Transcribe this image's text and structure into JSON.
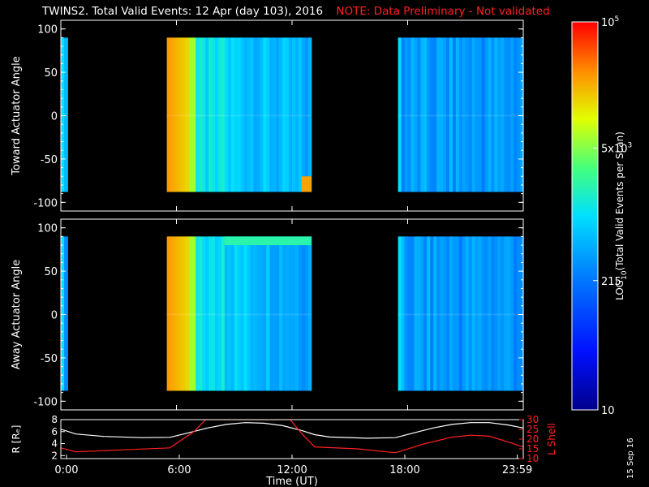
{
  "title": "TWINS2. Total Valid Events: 12 Apr (day 103), 2016",
  "note": "NOTE: Data Preliminary - Not validated",
  "date_stamp": "15 Sep 16",
  "colors": {
    "background": "#000000",
    "foreground": "#ffffff",
    "note": "#ff2020",
    "lshell_line": "#ff2020",
    "radius_line": "#ffffff"
  },
  "chart_data": [
    {
      "name": "toward-panel",
      "type": "heatmap",
      "ylabel": "Toward Actuator Angle",
      "ylim": [
        -110,
        110
      ],
      "yticks": [
        100,
        50,
        0,
        -50,
        -100
      ],
      "xlim": [
        0,
        24
      ],
      "data_range_deg": [
        -88,
        90
      ],
      "segments": [
        {
          "start_h": 0.0,
          "end_h": 0.35,
          "level": "low"
        },
        {
          "start_h": 5.5,
          "end_h": 13.0,
          "level": "high-decaying"
        },
        {
          "start_h": 17.5,
          "end_h": 24.0,
          "level": "low"
        }
      ]
    },
    {
      "name": "away-panel",
      "type": "heatmap",
      "ylabel": "Away Actuator Angle",
      "ylim": [
        -110,
        110
      ],
      "yticks": [
        100,
        50,
        0,
        -50,
        -100
      ],
      "xlim": [
        0,
        24
      ],
      "data_range_deg": [
        -88,
        90
      ],
      "segments": [
        {
          "start_h": 0.0,
          "end_h": 0.35,
          "level": "low"
        },
        {
          "start_h": 5.5,
          "end_h": 13.0,
          "level": "high-decaying"
        },
        {
          "start_h": 17.5,
          "end_h": 24.0,
          "level": "low"
        }
      ]
    },
    {
      "name": "orbit-panel",
      "type": "line",
      "xlabel": "Time (UT)",
      "x_ticks": [
        0,
        6,
        12,
        18,
        23.98
      ],
      "x_tick_labels": [
        "0:00",
        "6:00",
        "12:00",
        "18:00",
        "23:59"
      ],
      "xlim": [
        -0.3,
        24.3
      ],
      "left_axis": {
        "label": "R [Rₑ]",
        "ylim": [
          1.5,
          8
        ],
        "ticks": [
          2,
          4,
          6,
          8
        ]
      },
      "right_axis": {
        "label": "L Shell",
        "ylim": [
          10,
          30
        ],
        "ticks": [
          10,
          15,
          20,
          25,
          30
        ]
      },
      "series": [
        {
          "name": "R",
          "axis": "left",
          "points": [
            [
              -0.3,
              6.4
            ],
            [
              0.5,
              5.6
            ],
            [
              2.0,
              5.2
            ],
            [
              4.0,
              5.0
            ],
            [
              5.5,
              5.05
            ],
            [
              6.5,
              5.8
            ],
            [
              7.5,
              6.6
            ],
            [
              8.5,
              7.2
            ],
            [
              9.5,
              7.5
            ],
            [
              10.5,
              7.4
            ],
            [
              11.5,
              7.0
            ],
            [
              12.5,
              6.2
            ],
            [
              13.2,
              5.5
            ],
            [
              14.0,
              5.1
            ],
            [
              16.0,
              4.9
            ],
            [
              17.5,
              5.0
            ],
            [
              18.5,
              5.8
            ],
            [
              19.5,
              6.6
            ],
            [
              20.5,
              7.2
            ],
            [
              21.5,
              7.5
            ],
            [
              22.5,
              7.5
            ],
            [
              23.5,
              7.1
            ],
            [
              24.3,
              6.6
            ]
          ]
        },
        {
          "name": "L Shell",
          "axis": "right",
          "points": [
            [
              -0.3,
              15.5
            ],
            [
              0.5,
              13.5
            ],
            [
              3.0,
              14.5
            ],
            [
              5.5,
              15.5
            ],
            [
              6.8,
              24.0
            ],
            [
              7.4,
              30.0
            ],
            [
              11.9,
              30.0
            ],
            [
              12.5,
              23.0
            ],
            [
              13.2,
              16.0
            ],
            [
              15.5,
              15.0
            ],
            [
              17.5,
              13.0
            ],
            [
              19.0,
              17.5
            ],
            [
              20.5,
              21.0
            ],
            [
              21.5,
              22.0
            ],
            [
              22.5,
              21.5
            ],
            [
              23.5,
              18.5
            ],
            [
              24.3,
              16.0
            ]
          ]
        }
      ]
    }
  ],
  "colorbar": {
    "label": "LOG",
    "label_sub": "10",
    "label_rest": "(Total Valid Events per Scan)",
    "tick_labels": [
      {
        "value": 100000,
        "base": "10",
        "sup": "5",
        "pre": ""
      },
      {
        "value": 5000,
        "base": "10",
        "sup": "3",
        "pre": "5x"
      },
      {
        "value": 215,
        "base": "",
        "sup": "",
        "pre": "215"
      },
      {
        "value": 10,
        "base": "",
        "sup": "",
        "pre": "10"
      }
    ],
    "range": [
      10,
      100000
    ]
  }
}
